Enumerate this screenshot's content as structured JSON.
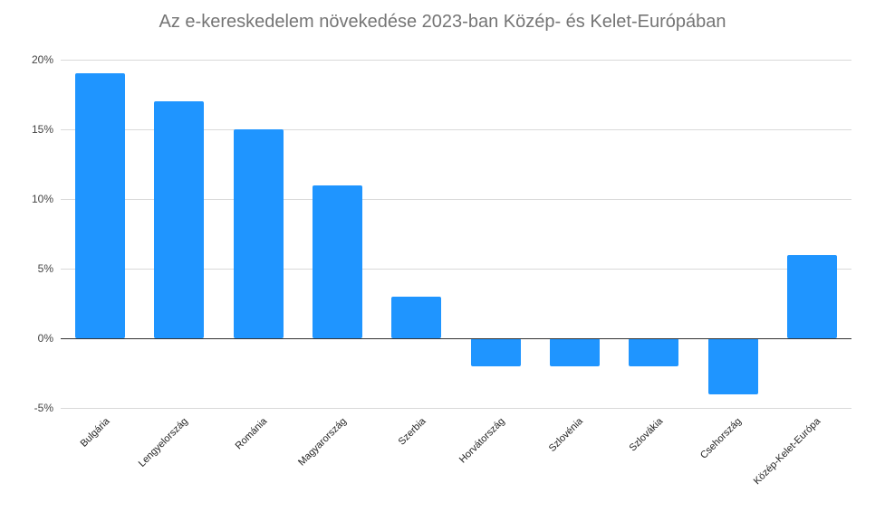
{
  "chart_data": {
    "type": "bar",
    "title": "Az e-kereskedelem növekedése 2023-ban Közép- és Kelet-Európában",
    "xlabel": "",
    "ylabel": "",
    "categories": [
      "Bulgária",
      "Lengyelország",
      "Románia",
      "Magyarország",
      "Szerbia",
      "Horvátország",
      "Szlovénia",
      "Szlovákia",
      "Csehország",
      "Közép-Kelet-Európa"
    ],
    "values": [
      19,
      17,
      15,
      11,
      3,
      -2,
      -2,
      -2,
      -4,
      6
    ],
    "value_unit": "%",
    "ylim": [
      -5,
      20
    ],
    "yticks": [
      "20%",
      "15%",
      "10%",
      "5%",
      "0%",
      "-5%"
    ],
    "ytick_values": [
      20,
      15,
      10,
      5,
      0,
      -5
    ],
    "grid": true,
    "legend": "none",
    "bar_color": "#1f95ff"
  }
}
